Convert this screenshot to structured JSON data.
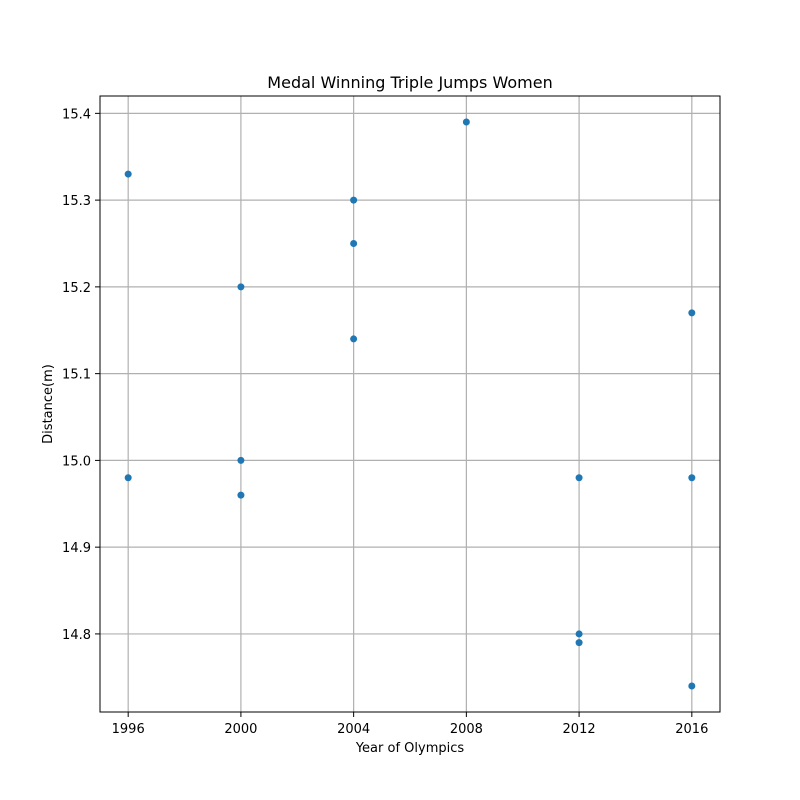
{
  "chart_data": {
    "type": "scatter",
    "title": "Medal Winning Triple Jumps Women",
    "xlabel": "Year of Olympics",
    "ylabel": "Distance(m)",
    "xlim": [
      1995,
      2017
    ],
    "ylim": [
      14.71,
      15.42
    ],
    "xticks": [
      1996,
      2000,
      2004,
      2008,
      2012,
      2016
    ],
    "yticks": [
      14.8,
      14.9,
      15.0,
      15.1,
      15.2,
      15.3,
      15.4
    ],
    "grid": true,
    "point_color": "#1f77b4",
    "points": [
      {
        "x": 1996,
        "y": 15.33
      },
      {
        "x": 1996,
        "y": 14.98
      },
      {
        "x": 2000,
        "y": 15.2
      },
      {
        "x": 2000,
        "y": 15.0
      },
      {
        "x": 2000,
        "y": 14.96
      },
      {
        "x": 2004,
        "y": 15.3
      },
      {
        "x": 2004,
        "y": 15.25
      },
      {
        "x": 2004,
        "y": 15.14
      },
      {
        "x": 2008,
        "y": 15.39
      },
      {
        "x": 2012,
        "y": 14.98
      },
      {
        "x": 2012,
        "y": 14.8
      },
      {
        "x": 2012,
        "y": 14.79
      },
      {
        "x": 2016,
        "y": 15.17
      },
      {
        "x": 2016,
        "y": 14.98
      },
      {
        "x": 2016,
        "y": 14.74
      }
    ]
  }
}
